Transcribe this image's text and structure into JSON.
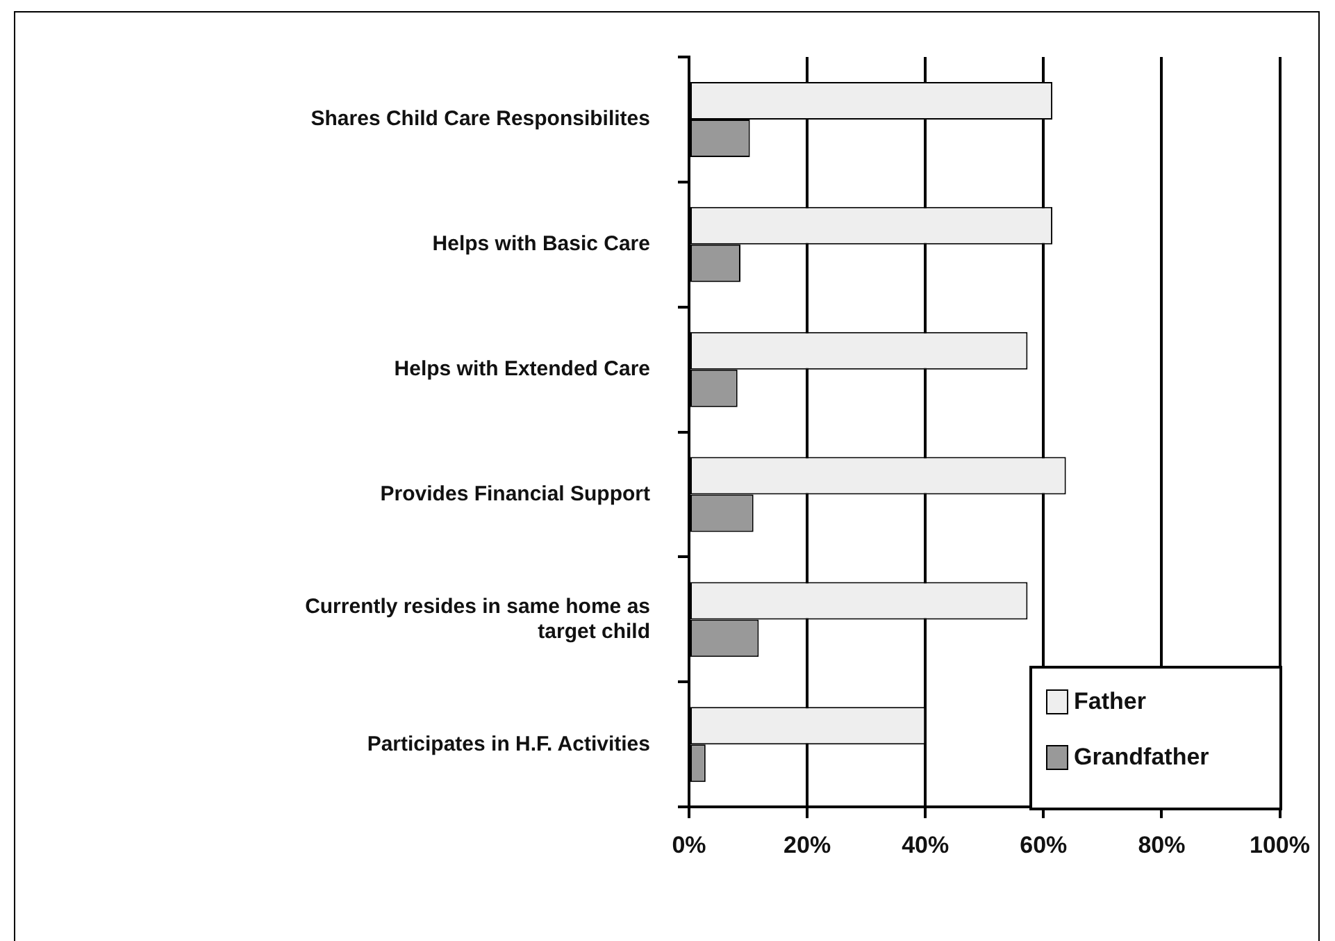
{
  "chart_data": {
    "type": "bar",
    "orientation": "horizontal",
    "categories": [
      "Shares Child Care Responsibilites",
      "Helps with Basic Care",
      "Helps with Extended Care",
      "Provides Financial Support",
      "Currently resides in same home as target child",
      "Participates in H.F. Activities"
    ],
    "series": [
      {
        "name": "Father",
        "color": "#eeeeee",
        "values": [
          61.5,
          61.5,
          57.3,
          63.8,
          57.3,
          40
        ]
      },
      {
        "name": "Grandfather",
        "color": "#999999",
        "values": [
          10.3,
          8.7,
          8.2,
          10.9,
          11.8,
          2.8
        ]
      }
    ],
    "xlim": [
      0,
      100
    ],
    "xticks": [
      {
        "value": 0,
        "label": "0%"
      },
      {
        "value": 20,
        "label": "20%"
      },
      {
        "value": 40,
        "label": "40%"
      },
      {
        "value": 60,
        "label": "60%"
      },
      {
        "value": 80,
        "label": "80%"
      },
      {
        "value": 100,
        "label": "100%"
      }
    ],
    "grid": "x",
    "legend": "bottom right"
  }
}
